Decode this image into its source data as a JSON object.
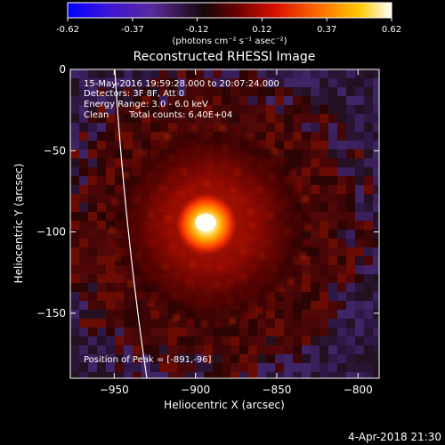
{
  "colorbar": {
    "ticks": [
      "-0.62",
      "-0.37",
      "-0.12",
      "0.12",
      "0.37",
      "0.62"
    ],
    "unit_label": "(photons cm⁻² s⁻¹ asec⁻²)"
  },
  "chart_data": {
    "type": "heatmap",
    "title": "Reconstructed RHESSI Image",
    "xlabel": "Heliocentric X (arcsec)",
    "ylabel": "Heliocentric Y (arcsec)",
    "xlim": [
      -977,
      -787
    ],
    "ylim": [
      -190,
      0
    ],
    "x_ticks": [
      -950,
      -900,
      -850,
      -800
    ],
    "y_ticks": [
      0,
      -50,
      -100,
      -150
    ],
    "x_tick_labels": [
      "−950",
      "−900",
      "−850",
      "−800"
    ],
    "y_tick_labels": [
      "0",
      "−50",
      "−100",
      "−150"
    ],
    "value_range": [
      -0.62,
      0.62
    ],
    "colormap": "RHESSI (blue-purple-black-red-orange-yellow-white)",
    "peak": {
      "x": -891,
      "y": -96
    },
    "limb_visible": true,
    "annotations": {
      "time": "15-May-2016 19:59:28.000 to 20:07:24.000",
      "detectors": "Detectors: 3F 8F, Att 0",
      "energy": "Energy Range: 3.0 - 6.0 keV",
      "method": "Clean",
      "counts": "Total counts: 6.40E+04",
      "peak_text": "Position of Peak = [-891,-96]"
    }
  },
  "footer": {
    "timestamp": "4-Apr-2018 21:30"
  }
}
